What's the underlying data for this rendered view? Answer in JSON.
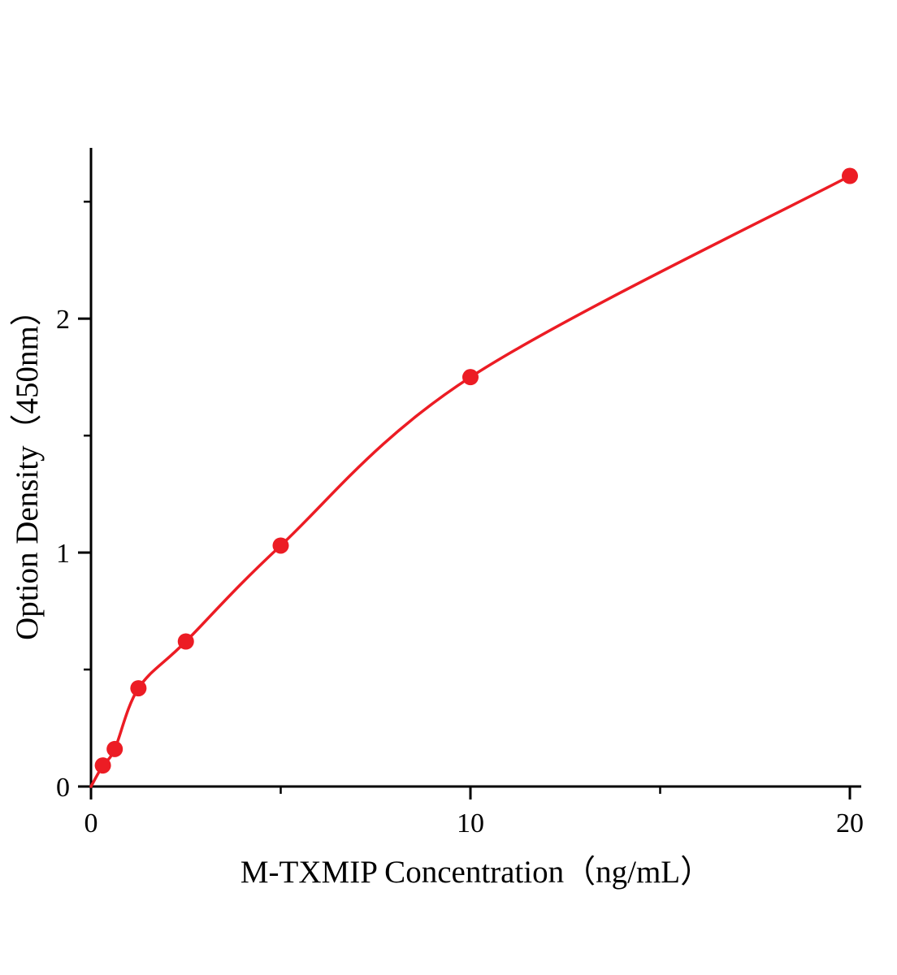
{
  "figure": {
    "background": "#ffffff"
  },
  "chart_data": {
    "type": "scatter",
    "title": "",
    "xlabel": "M-TXMIP Concentration（ng/mL）",
    "ylabel": "Option Density（450nm）",
    "x": [
      0.3125,
      0.625,
      1.25,
      2.5,
      5,
      10,
      20
    ],
    "y": [
      0.09,
      0.16,
      0.42,
      0.62,
      1.03,
      1.75,
      2.61
    ],
    "curve_origin": [
      0,
      0
    ],
    "xlim": [
      0,
      20.3
    ],
    "ylim": [
      0,
      2.73
    ],
    "x_major_ticks": [
      0,
      10,
      20
    ],
    "x_minor_ticks": [
      5,
      15
    ],
    "y_major_ticks": [
      0,
      1,
      2
    ],
    "y_minor_ticks": [
      0.5,
      1.5,
      2.5
    ],
    "grid": false,
    "legend": null,
    "line_color": "#ec1c24",
    "marker_color": "#ec1c24",
    "marker_radius": 10,
    "axis_color": "#000000"
  }
}
